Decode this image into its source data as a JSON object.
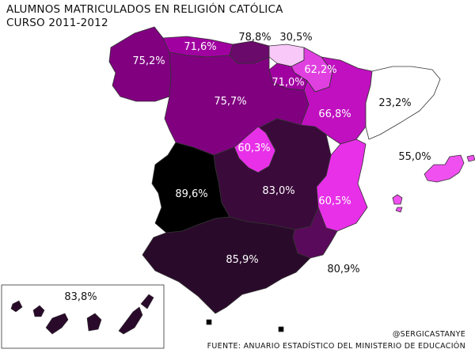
{
  "title_line1": "ALUMNOS MATRICULADOS EN RELIGIÓN CATÓLICA",
  "title_line2": "CURSO 2011-2012",
  "credit": "@SERGICASTANYE",
  "source": "FUENTE: ANUARIO ESTADÍSTICO DEL MINISTERIO DE EDUCACIÓN",
  "regions": [
    {
      "key": "galicia",
      "label": "75,2%",
      "value": 75.2,
      "color": "#800080"
    },
    {
      "key": "asturias",
      "label": "71,6%",
      "value": 71.6,
      "color": "#A000A0"
    },
    {
      "key": "cantabria",
      "label": "78,8%",
      "value": 78.8,
      "color": "#6A0A6A"
    },
    {
      "key": "pais-vasco",
      "label": "30,5%",
      "value": 30.5,
      "color": "#F8C8F8"
    },
    {
      "key": "navarra",
      "label": "62,2%",
      "value": 62.2,
      "color": "#E040E0"
    },
    {
      "key": "la-rioja",
      "label": "71,0%",
      "value": 71.0,
      "color": "#A000A0"
    },
    {
      "key": "castilla-y-leon",
      "label": "75,7%",
      "value": 75.7,
      "color": "#800080"
    },
    {
      "key": "aragon",
      "label": "66,8%",
      "value": 66.8,
      "color": "#C010C0"
    },
    {
      "key": "cataluna",
      "label": "23,2%",
      "value": 23.2,
      "color": "#FFFFFF"
    },
    {
      "key": "madrid",
      "label": "60,3%",
      "value": 60.3,
      "color": "#E830E8"
    },
    {
      "key": "baleares",
      "label": "55,0%",
      "value": 55.0,
      "color": "#F050F0"
    },
    {
      "key": "extremadura",
      "label": "89,6%",
      "value": 89.6,
      "color": "#000000"
    },
    {
      "key": "castilla-la-mancha",
      "label": "83,0%",
      "value": 83.0,
      "color": "#3A0A3A"
    },
    {
      "key": "comunidad-valenciana",
      "label": "60,5%",
      "value": 60.5,
      "color": "#E830E8"
    },
    {
      "key": "murcia",
      "label": "80,9%",
      "value": 80.9,
      "color": "#5A0A5A"
    },
    {
      "key": "andalucia",
      "label": "85,9%",
      "value": 85.9,
      "color": "#2A0A2A"
    },
    {
      "key": "canarias",
      "label": "83,8%",
      "value": 83.8,
      "color": "#2A0A2A"
    }
  ]
}
